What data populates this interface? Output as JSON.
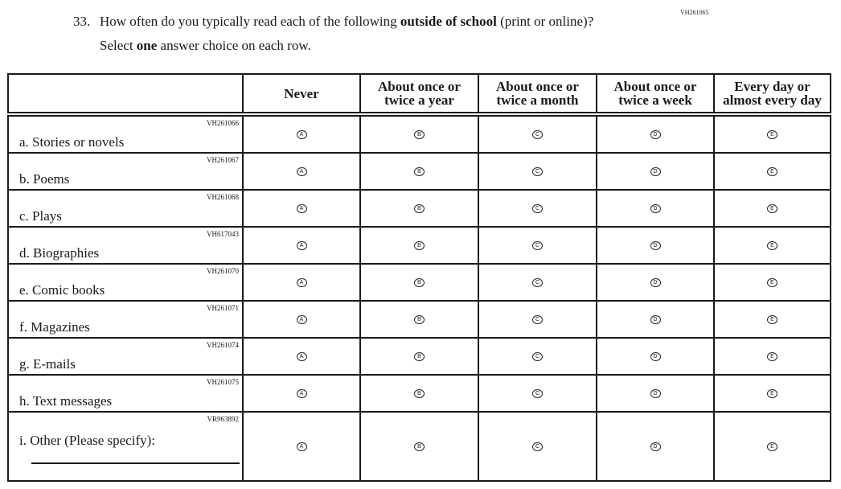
{
  "question_id": "VH261065",
  "question_number": "33.",
  "question_pre": "How often do you typically read each of the following ",
  "question_bold": "outside of school",
  "question_post": " (print or online)?",
  "instruction_pre": "Select ",
  "instruction_bold": "one",
  "instruction_post": " answer choice on each row.",
  "columns": [
    {
      "line1": "Never",
      "line2": ""
    },
    {
      "line1": "About once or",
      "line2": "twice a year"
    },
    {
      "line1": "About once or",
      "line2": "twice a month"
    },
    {
      "line1": "About once or",
      "line2": "twice a week"
    },
    {
      "line1": "Every day or",
      "line2": "almost every day"
    }
  ],
  "option_letters": [
    "A",
    "B",
    "C",
    "D",
    "E"
  ],
  "rows": [
    {
      "id": "VH261066",
      "label": "a.  Stories or novels"
    },
    {
      "id": "VH261067",
      "label": "b.  Poems"
    },
    {
      "id": "VH261068",
      "label": "c.  Plays"
    },
    {
      "id": "VH617043",
      "label": "d.  Biographies"
    },
    {
      "id": "VH261070",
      "label": "e.  Comic books"
    },
    {
      "id": "VH261071",
      "label": "f.  Magazines"
    },
    {
      "id": "VH261074",
      "label": "g.  E-mails"
    },
    {
      "id": "VH261075",
      "label": "h.  Text messages"
    },
    {
      "id": "VR963892",
      "label": "i.  Other (Please specify):",
      "other": true
    }
  ]
}
